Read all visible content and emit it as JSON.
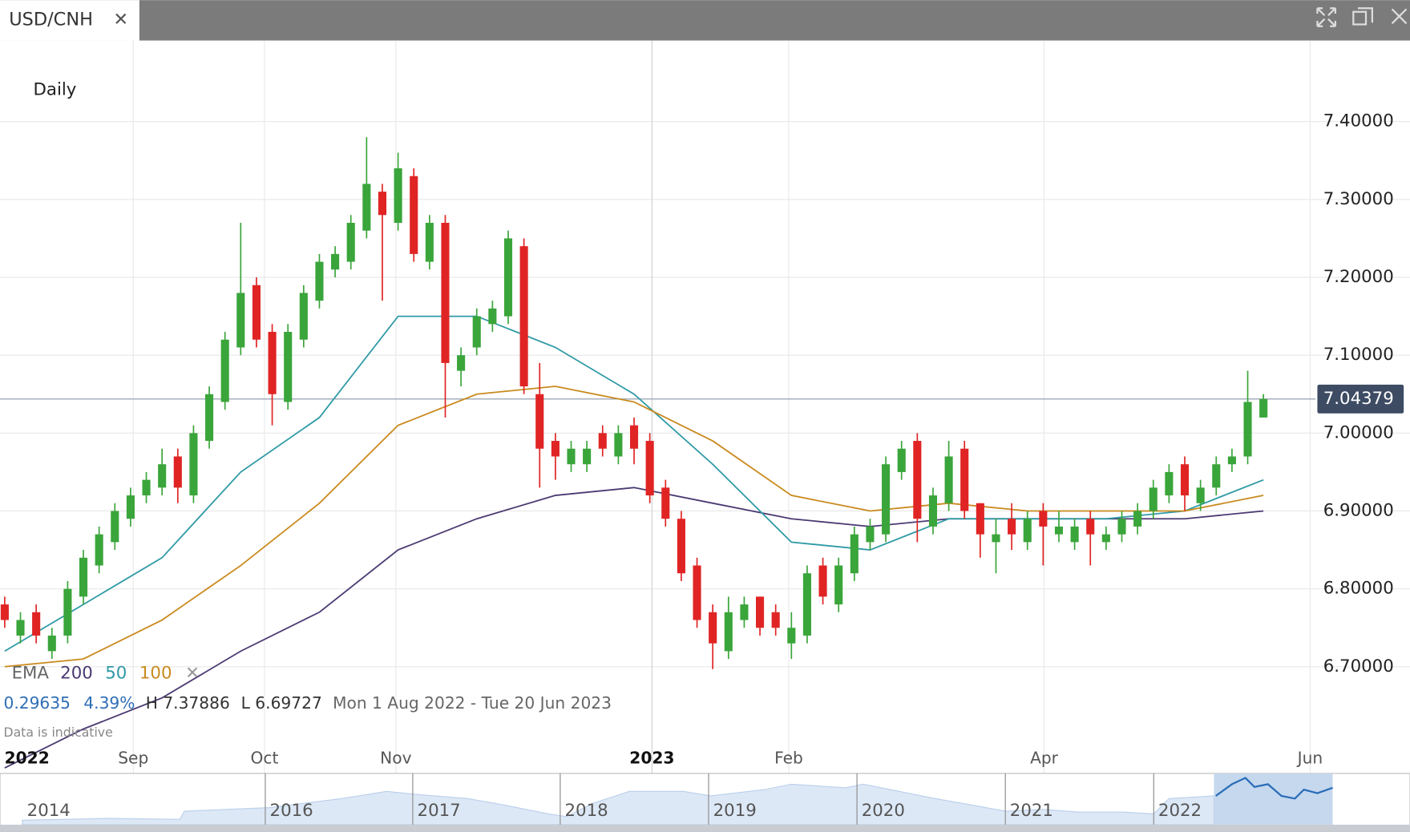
{
  "chart_data": {
    "type": "candlestick",
    "title": "USD/CNH",
    "interval": "Daily",
    "indicator": "EMA",
    "open": [
      6.78,
      6.74,
      6.77,
      6.72,
      6.74,
      6.79,
      6.83,
      6.86,
      6.89,
      6.92,
      6.93,
      6.97,
      6.92,
      6.99,
      7.04,
      7.11,
      7.19,
      7.13,
      7.04,
      7.12,
      7.17,
      7.21,
      7.22,
      7.26,
      7.31,
      7.27,
      7.33,
      7.22,
      7.27,
      7.08,
      7.11,
      7.14,
      7.15,
      7.24,
      7.05,
      6.99,
      6.96,
      6.96,
      7.0,
      6.97,
      7.01,
      6.99,
      6.93,
      6.89,
      6.83,
      6.77,
      6.72,
      6.76,
      6.79,
      6.77,
      6.73,
      6.74,
      6.83,
      6.78,
      6.82,
      6.86,
      6.87,
      6.95,
      6.99,
      6.88,
      6.91,
      6.98,
      6.91,
      6.86,
      6.89,
      6.86,
      6.9,
      6.87,
      6.86,
      6.89,
      6.86,
      6.87,
      6.88,
      6.9,
      6.92,
      6.96,
      6.91,
      6.93,
      6.96,
      6.97,
      7.02
    ],
    "high": [
      6.79,
      6.77,
      6.78,
      6.75,
      6.81,
      6.85,
      6.88,
      6.91,
      6.93,
      6.95,
      6.98,
      6.98,
      7.01,
      7.06,
      7.13,
      7.27,
      7.2,
      7.14,
      7.14,
      7.19,
      7.23,
      7.24,
      7.28,
      7.38,
      7.32,
      7.36,
      7.34,
      7.28,
      7.28,
      7.11,
      7.16,
      7.17,
      7.26,
      7.25,
      7.09,
      7.0,
      6.99,
      6.99,
      7.01,
      7.01,
      7.02,
      7.0,
      6.94,
      6.9,
      6.84,
      6.78,
      6.79,
      6.79,
      6.79,
      6.78,
      6.77,
      6.83,
      6.84,
      6.84,
      6.88,
      6.89,
      6.97,
      6.99,
      7.0,
      6.93,
      6.99,
      6.99,
      6.91,
      6.89,
      6.91,
      6.9,
      6.91,
      6.9,
      6.89,
      6.9,
      6.88,
      6.9,
      6.91,
      6.94,
      6.96,
      6.97,
      6.94,
      6.97,
      6.98,
      7.08,
      7.05
    ],
    "low": [
      6.75,
      6.73,
      6.73,
      6.71,
      6.73,
      6.78,
      6.82,
      6.85,
      6.88,
      6.91,
      6.92,
      6.91,
      6.91,
      6.98,
      7.03,
      7.1,
      7.11,
      7.01,
      7.03,
      7.11,
      7.16,
      7.2,
      7.21,
      7.25,
      7.17,
      7.26,
      7.22,
      7.21,
      7.02,
      7.06,
      7.1,
      7.13,
      7.14,
      7.05,
      6.93,
      6.94,
      6.95,
      6.95,
      6.97,
      6.96,
      6.96,
      6.91,
      6.88,
      6.81,
      6.75,
      6.697,
      6.71,
      6.75,
      6.74,
      6.74,
      6.71,
      6.73,
      6.78,
      6.77,
      6.81,
      6.85,
      6.86,
      6.94,
      6.86,
      6.87,
      6.9,
      6.89,
      6.84,
      6.82,
      6.85,
      6.85,
      6.83,
      6.86,
      6.85,
      6.83,
      6.85,
      6.86,
      6.87,
      6.89,
      6.91,
      6.9,
      6.9,
      6.92,
      6.95,
      6.96,
      7.02
    ],
    "close": [
      6.76,
      6.76,
      6.74,
      6.74,
      6.8,
      6.84,
      6.87,
      6.9,
      6.92,
      6.94,
      6.96,
      6.93,
      7.0,
      7.05,
      7.12,
      7.18,
      7.12,
      7.05,
      7.13,
      7.18,
      7.22,
      7.23,
      7.27,
      7.32,
      7.28,
      7.34,
      7.23,
      7.27,
      7.09,
      7.1,
      7.15,
      7.16,
      7.25,
      7.06,
      6.98,
      6.97,
      6.98,
      6.98,
      6.98,
      7.0,
      6.98,
      6.92,
      6.89,
      6.82,
      6.76,
      6.73,
      6.77,
      6.78,
      6.75,
      6.75,
      6.75,
      6.82,
      6.79,
      6.83,
      6.87,
      6.88,
      6.96,
      6.98,
      6.89,
      6.92,
      6.97,
      6.9,
      6.87,
      6.87,
      6.87,
      6.89,
      6.88,
      6.88,
      6.88,
      6.87,
      6.87,
      6.89,
      6.9,
      6.93,
      6.95,
      6.92,
      6.93,
      6.96,
      6.97,
      7.04,
      7.04379
    ],
    "up_color": "#3aa53a",
    "down_color": "#e02424",
    "ema_x": [
      0,
      5,
      10,
      15,
      20,
      25,
      30,
      35,
      40,
      45,
      50,
      55,
      60,
      65,
      70,
      75,
      80
    ],
    "series": [
      {
        "name": "200",
        "color": "#4b3a72",
        "values": [
          6.57,
          6.62,
          6.66,
          6.72,
          6.77,
          6.85,
          6.89,
          6.92,
          6.93,
          6.91,
          6.89,
          6.88,
          6.89,
          6.89,
          6.89,
          6.89,
          6.9
        ]
      },
      {
        "name": "50",
        "color": "#2f9aa5",
        "values": [
          6.72,
          6.78,
          6.84,
          6.95,
          7.02,
          7.15,
          7.15,
          7.11,
          7.05,
          6.96,
          6.86,
          6.85,
          6.89,
          6.89,
          6.89,
          6.9,
          6.94
        ]
      },
      {
        "name": "100",
        "color": "#c98a1e",
        "values": [
          6.7,
          6.71,
          6.76,
          6.83,
          6.91,
          7.01,
          7.05,
          7.06,
          7.04,
          6.99,
          6.92,
          6.9,
          6.91,
          6.9,
          6.9,
          6.9,
          6.92
        ]
      }
    ],
    "last_price": 7.04379,
    "xlim": [
      -0.3,
      83.2
    ],
    "xticks": [
      {
        "value": 0,
        "label": "2022"
      },
      {
        "value": 8.17,
        "label": "Sep"
      },
      {
        "value": 16.51,
        "label": "Oct"
      },
      {
        "value": 24.86,
        "label": "Nov"
      },
      {
        "value": 41.14,
        "label": "2023"
      },
      {
        "value": 49.83,
        "label": "Feb"
      },
      {
        "value": 66.06,
        "label": "Apr"
      },
      {
        "value": 82.97,
        "label": "Jun"
      }
    ],
    "ylim": [
      6.563,
      7.504
    ],
    "yticks": [
      {
        "value": 6.7,
        "label": "6.70000"
      },
      {
        "value": 6.8,
        "label": "6.80000"
      },
      {
        "value": 6.9,
        "label": "6.90000"
      },
      {
        "value": 7.0,
        "label": "7.00000"
      },
      {
        "value": 7.1,
        "label": "7.10000"
      },
      {
        "value": 7.2,
        "label": "7.20000"
      },
      {
        "value": 7.3,
        "label": "7.30000"
      },
      {
        "value": 7.4,
        "label": "7.40000"
      }
    ],
    "grid": true,
    "stats": {
      "change": "0.29635",
      "change_percent": "4.39%",
      "high": "H 7.37886",
      "low": "L 6.69727",
      "range": "Mon 1 Aug 2022 - Tue 20 Jun 2023"
    },
    "footnote": "Data is indicative",
    "navigator": {
      "years": [
        "2014",
        "2016",
        "2017",
        "2018",
        "2019",
        "2020",
        "2021",
        "2022"
      ]
    }
  }
}
